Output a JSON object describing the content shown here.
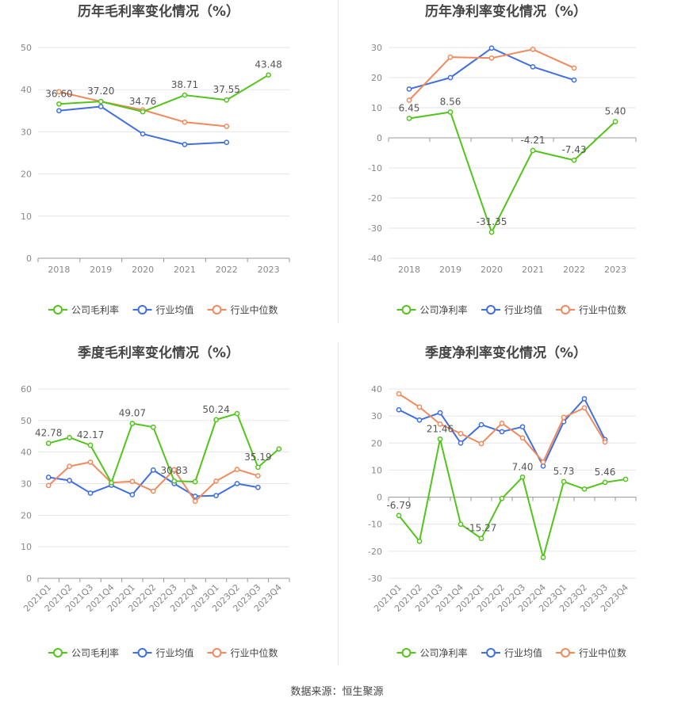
{
  "footer": {
    "source": "数据来源：恒生聚源"
  },
  "colors": {
    "company": "#52c41a",
    "industry_avg": "#3f6fe0",
    "industry_median": "#f08a5d",
    "grid": "#e6e6e6",
    "axis_text": "#888888",
    "title_text": "#444444"
  },
  "chart_data": [
    {
      "id": "annual-gross",
      "type": "line",
      "title": "历年毛利率变化情况（%）",
      "categories": [
        "2018",
        "2019",
        "2020",
        "2021",
        "2022",
        "2023"
      ],
      "ylim": [
        0,
        50
      ],
      "yticks": [
        0,
        10,
        20,
        30,
        40,
        50
      ],
      "grid": true,
      "legend_position": "bottom",
      "series": [
        {
          "name": "公司毛利率",
          "color": "#52c41a",
          "values": [
            36.6,
            37.2,
            34.76,
            38.71,
            37.55,
            43.48
          ]
        },
        {
          "name": "行业均值",
          "color": "#3f6fe0",
          "values": [
            35.0,
            36.0,
            29.5,
            27.0,
            27.5,
            null
          ]
        },
        {
          "name": "行业中位数",
          "color": "#f08a5d",
          "values": [
            39.5,
            37.2,
            35.2,
            32.3,
            31.3,
            null
          ]
        }
      ],
      "data_labels": [
        {
          "index": 0,
          "text": "36.60"
        },
        {
          "index": 1,
          "text": "37.20"
        },
        {
          "index": 2,
          "text": "34.76"
        },
        {
          "index": 3,
          "text": "38.71"
        },
        {
          "index": 4,
          "text": "37.55"
        },
        {
          "index": 5,
          "text": "43.48"
        }
      ]
    },
    {
      "id": "annual-net",
      "type": "line",
      "title": "历年净利率变化情况（%）",
      "categories": [
        "2018",
        "2019",
        "2020",
        "2021",
        "2022",
        "2023"
      ],
      "ylim": [
        -40,
        30
      ],
      "yticks": [
        -40,
        -30,
        -20,
        -10,
        0,
        10,
        20,
        30
      ],
      "grid": true,
      "legend_position": "bottom",
      "series": [
        {
          "name": "公司净利率",
          "color": "#52c41a",
          "values": [
            6.45,
            8.56,
            -31.35,
            -4.21,
            -7.43,
            5.4
          ]
        },
        {
          "name": "行业均值",
          "color": "#3f6fe0",
          "values": [
            16.2,
            20.0,
            29.8,
            23.6,
            19.2,
            null
          ]
        },
        {
          "name": "行业中位数",
          "color": "#f08a5d",
          "values": [
            12.5,
            26.8,
            26.5,
            29.4,
            23.2,
            null
          ]
        }
      ],
      "data_labels": [
        {
          "index": 0,
          "text": "6.45"
        },
        {
          "index": 1,
          "text": "8.56"
        },
        {
          "index": 2,
          "text": "-31.35"
        },
        {
          "index": 3,
          "text": "-4.21"
        },
        {
          "index": 4,
          "text": "-7.43"
        },
        {
          "index": 5,
          "text": "5.40"
        }
      ]
    },
    {
      "id": "quarter-gross",
      "type": "line",
      "title": "季度毛利率变化情况（%）",
      "categories": [
        "2021Q1",
        "2021Q2",
        "2021Q3",
        "2021Q4",
        "2022Q1",
        "2022Q2",
        "2022Q3",
        "2022Q4",
        "2023Q1",
        "2023Q2",
        "2023Q3",
        "2023Q4"
      ],
      "ylim": [
        0,
        60
      ],
      "yticks": [
        0,
        10,
        20,
        30,
        40,
        50,
        60
      ],
      "grid": true,
      "legend_position": "bottom",
      "rotate_x_labels": true,
      "series": [
        {
          "name": "公司毛利率",
          "color": "#52c41a",
          "values": [
            42.78,
            44.6,
            42.17,
            30.3,
            49.07,
            47.9,
            30.83,
            30.6,
            50.24,
            52.2,
            35.19,
            41.0
          ]
        },
        {
          "name": "行业均值",
          "color": "#3f6fe0",
          "values": [
            32.0,
            31.0,
            27.0,
            29.5,
            26.5,
            34.3,
            30.0,
            26.0,
            26.2,
            30.0,
            28.8,
            null
          ]
        },
        {
          "name": "行业中位数",
          "color": "#f08a5d",
          "values": [
            29.4,
            35.5,
            36.8,
            30.3,
            30.7,
            27.6,
            34.4,
            24.4,
            30.8,
            34.5,
            32.5,
            null
          ]
        }
      ],
      "data_labels": [
        {
          "index": 0,
          "text": "42.78"
        },
        {
          "index": 2,
          "text": "42.17"
        },
        {
          "index": 4,
          "text": "49.07"
        },
        {
          "index": 6,
          "text": "30.83"
        },
        {
          "index": 8,
          "text": "50.24"
        },
        {
          "index": 10,
          "text": "35.19"
        }
      ]
    },
    {
      "id": "quarter-net",
      "type": "line",
      "title": "季度净利率变化情况（%）",
      "categories": [
        "2021Q1",
        "2021Q2",
        "2021Q3",
        "2021Q4",
        "2022Q1",
        "2022Q2",
        "2022Q3",
        "2022Q4",
        "2023Q1",
        "2023Q2",
        "2023Q3",
        "2023Q4"
      ],
      "ylim": [
        -30,
        40
      ],
      "yticks": [
        -30,
        -20,
        -10,
        0,
        10,
        20,
        30,
        40
      ],
      "grid": true,
      "legend_position": "bottom",
      "rotate_x_labels": true,
      "series": [
        {
          "name": "公司净利率",
          "color": "#52c41a",
          "values": [
            -6.79,
            -16.3,
            21.46,
            -10.0,
            -15.27,
            -0.5,
            7.4,
            -22.3,
            5.73,
            3.0,
            5.46,
            6.6
          ]
        },
        {
          "name": "行业均值",
          "color": "#3f6fe0",
          "values": [
            32.3,
            28.5,
            31.2,
            20.0,
            26.8,
            24.2,
            26.0,
            11.5,
            27.9,
            36.4,
            21.3,
            null
          ]
        },
        {
          "name": "行业中位数",
          "color": "#f08a5d",
          "values": [
            38.2,
            33.3,
            27.0,
            23.5,
            19.8,
            27.3,
            21.9,
            13.0,
            29.5,
            33.0,
            20.4,
            null
          ]
        }
      ],
      "data_labels": [
        {
          "index": 0,
          "text": "-6.79"
        },
        {
          "index": 2,
          "text": "21.46"
        },
        {
          "index": 4,
          "text": "-15.27"
        },
        {
          "index": 6,
          "text": "7.40"
        },
        {
          "index": 8,
          "text": "5.73"
        },
        {
          "index": 10,
          "text": "5.46"
        }
      ]
    }
  ]
}
